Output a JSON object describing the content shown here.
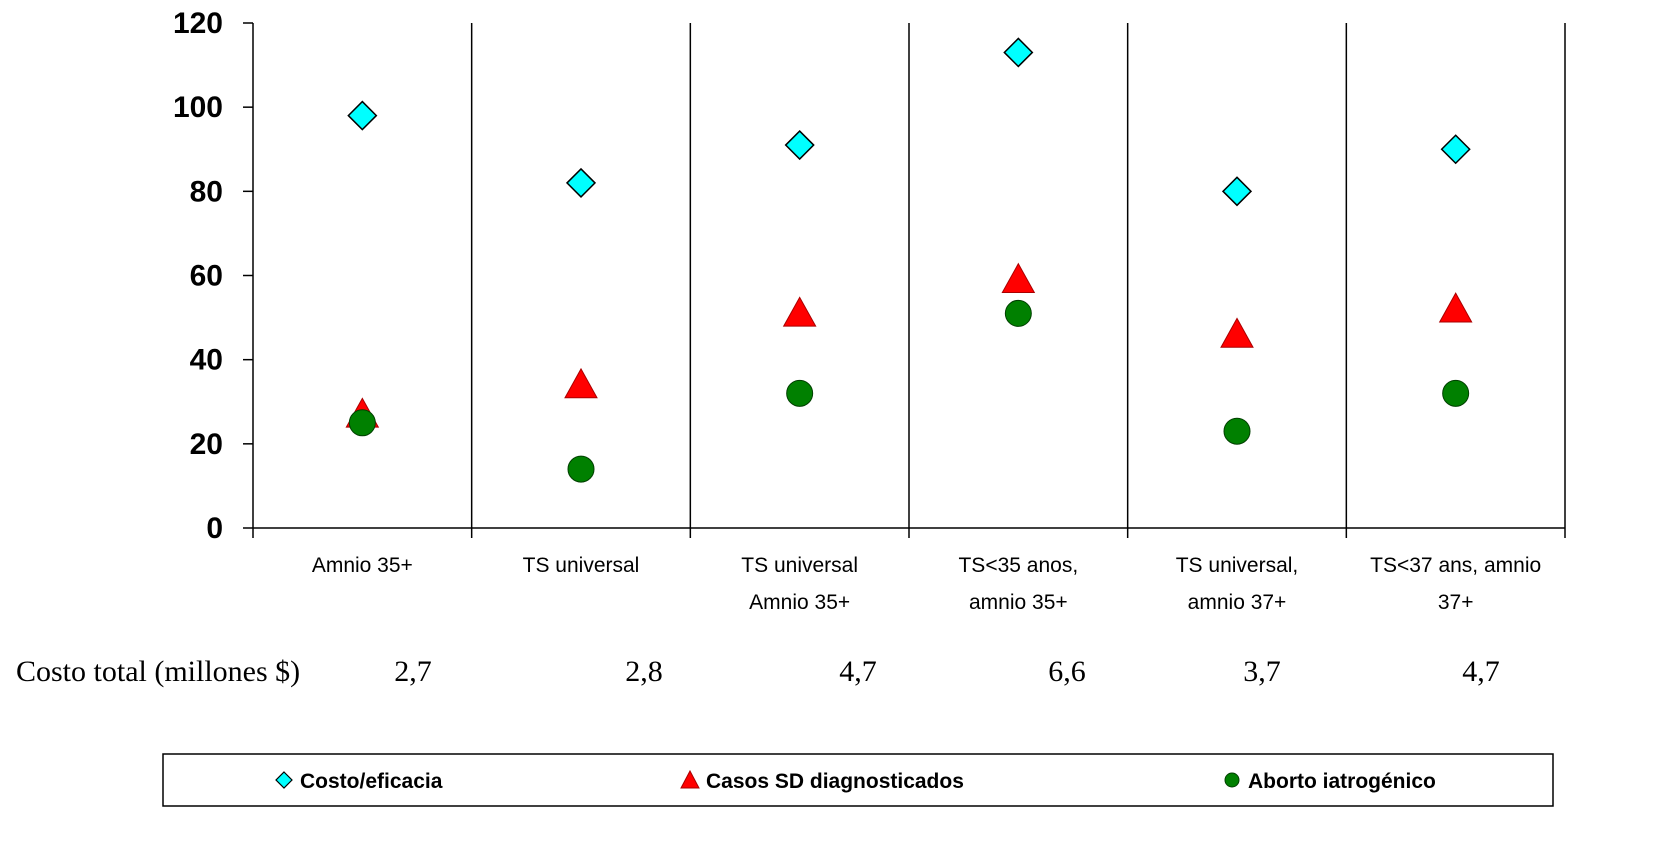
{
  "chart_data": {
    "type": "scatter",
    "categories": [
      [
        "Amnio 35+"
      ],
      [
        "TS universal"
      ],
      [
        "TS universal",
        "Amnio 35+"
      ],
      [
        "TS<35 anos,",
        "amnio 35+"
      ],
      [
        "TS universal,",
        "amnio 37+"
      ],
      [
        "TS<37 ans, amnio",
        "37+"
      ]
    ],
    "series": [
      {
        "name": "Costo/eficacia",
        "marker": "diamond",
        "color": "#00FFFF",
        "values": [
          98,
          82,
          91,
          113,
          80,
          90
        ]
      },
      {
        "name": "Casos SD diagnosticados",
        "marker": "triangle",
        "color": "#FF0000",
        "values": [
          27,
          34,
          51,
          59,
          46,
          52
        ]
      },
      {
        "name": "Aborto iatrogénico",
        "marker": "circle",
        "color": "#008000",
        "values": [
          25,
          14,
          32,
          51,
          23,
          32
        ]
      }
    ],
    "yticks": [
      0,
      20,
      40,
      60,
      80,
      100,
      120
    ],
    "ylim": [
      0,
      120
    ],
    "grid": false,
    "legend_position": "bottom",
    "cost_row": {
      "label": "Costo total (millones $)",
      "values": [
        "2,7",
        "2,8",
        "4,7",
        "6,6",
        "3,7",
        "4,7"
      ]
    }
  }
}
